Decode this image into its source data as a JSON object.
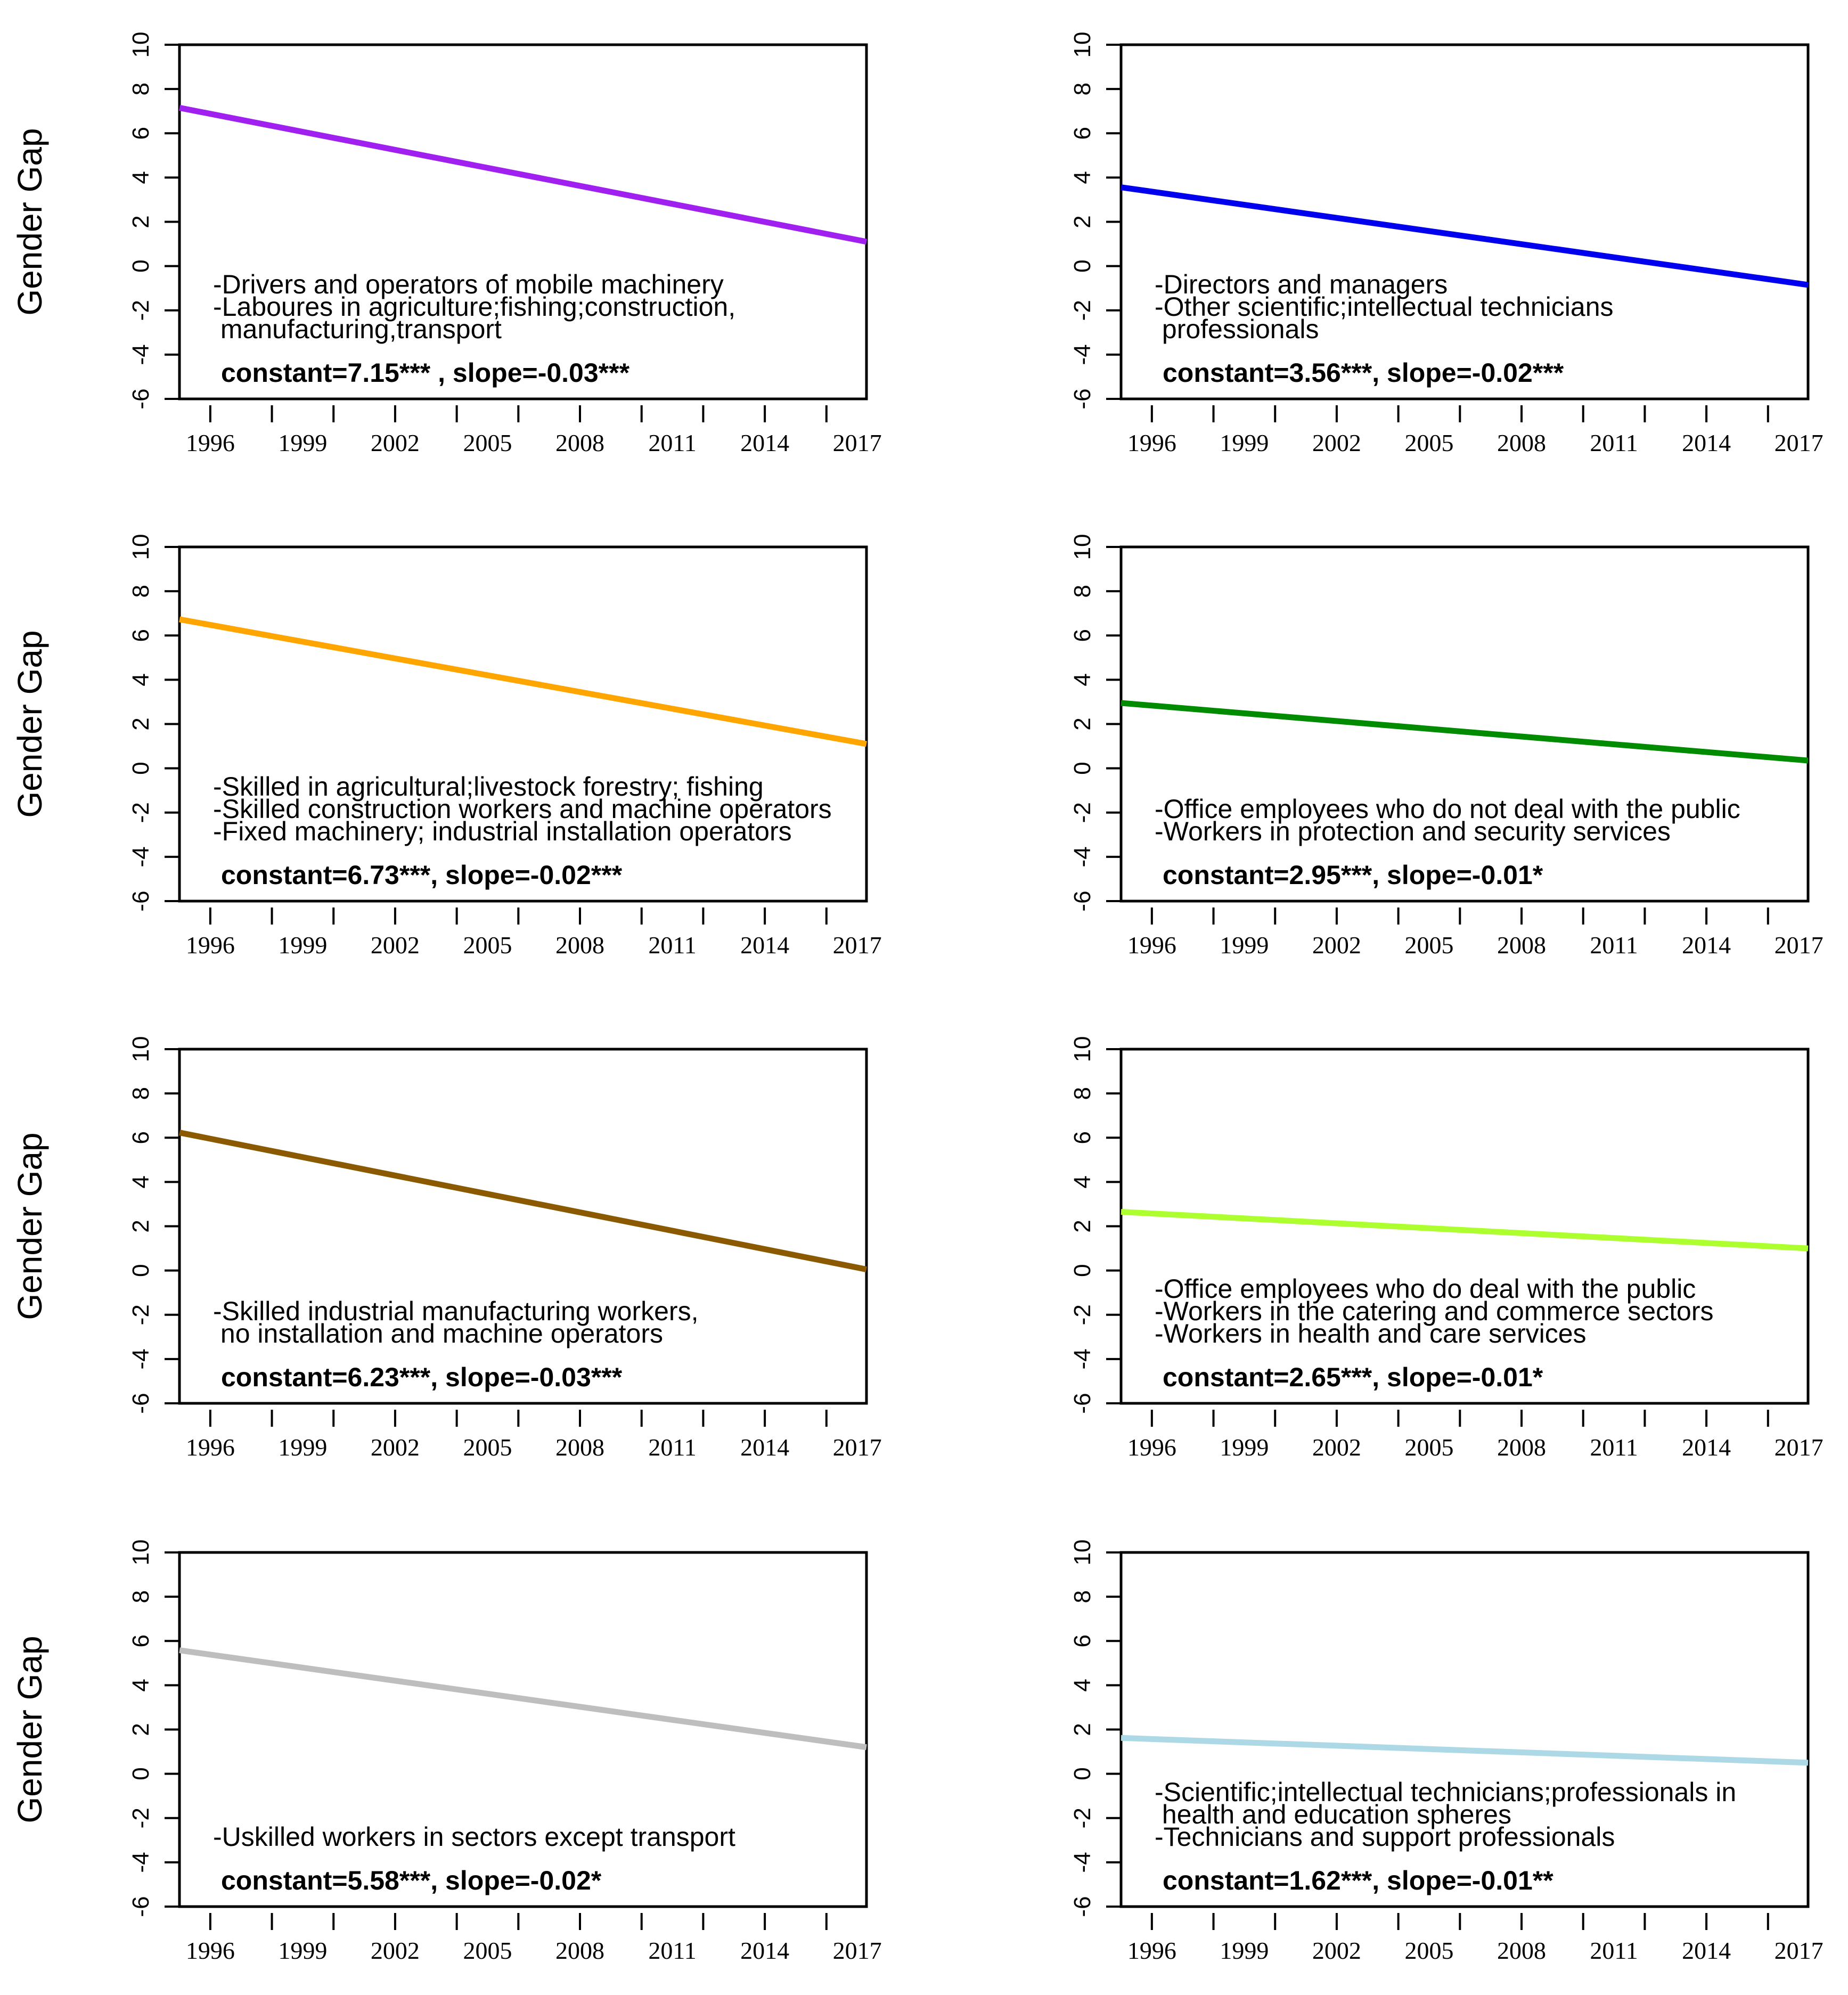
{
  "chart_data": [
    {
      "type": "line",
      "ylabel": "Gender Gap",
      "ylim": [
        -6,
        10
      ],
      "yticks": [
        "10",
        "8",
        "6",
        "4",
        "2",
        "0",
        "-2",
        "-4",
        "-6"
      ],
      "xticks": [
        "1996",
        "1999",
        "2002",
        "2005",
        "2008",
        "2011",
        "2014",
        "2017"
      ],
      "xlim": [
        1995,
        2017.3
      ],
      "color": "#a020f0",
      "series": [
        {
          "name": "fit",
          "x": [
            1995,
            2017.3
          ],
          "y": [
            7.15,
            1.1
          ]
        }
      ],
      "annotations": [
        "-Drivers and operators of mobile machinery",
        "-Laboures in agriculture;fishing;construction,",
        " manufacturing,transport"
      ],
      "stats": "constant=7.15*** , slope=-0.03***"
    },
    {
      "type": "line",
      "ylabel": "",
      "ylim": [
        -6,
        10
      ],
      "yticks": [
        "10",
        "8",
        "6",
        "4",
        "2",
        "0",
        "-2",
        "-4",
        "-6"
      ],
      "xticks": [
        "1996",
        "1999",
        "2002",
        "2005",
        "2008",
        "2011",
        "2014",
        "2017"
      ],
      "xlim": [
        1995,
        2017.3
      ],
      "color": "#0000ee",
      "series": [
        {
          "name": "fit",
          "x": [
            1995,
            2017.3
          ],
          "y": [
            3.56,
            -0.85
          ]
        }
      ],
      "annotations": [
        "-Directors and managers",
        "-Other scientific;intellectual technicians",
        " professionals"
      ],
      "stats": "constant=3.56***, slope=-0.02***"
    },
    {
      "type": "line",
      "ylabel": "Gender Gap",
      "ylim": [
        -6,
        10
      ],
      "yticks": [
        "10",
        "8",
        "6",
        "4",
        "2",
        "0",
        "-2",
        "-4",
        "-6"
      ],
      "xticks": [
        "1996",
        "1999",
        "2002",
        "2005",
        "2008",
        "2011",
        "2014",
        "2017"
      ],
      "xlim": [
        1995,
        2017.3
      ],
      "color": "#ffa500",
      "series": [
        {
          "name": "fit",
          "x": [
            1995,
            2017.3
          ],
          "y": [
            6.73,
            1.1
          ]
        }
      ],
      "annotations": [
        "-Skilled in agricultural;livestock forestry; fishing",
        "-Skilled construction workers and machine operators",
        "-Fixed machinery; industrial installation operators"
      ],
      "stats": "constant=6.73***, slope=-0.02***"
    },
    {
      "type": "line",
      "ylabel": "",
      "ylim": [
        -6,
        10
      ],
      "yticks": [
        "10",
        "8",
        "6",
        "4",
        "2",
        "0",
        "-2",
        "-4",
        "-6"
      ],
      "xticks": [
        "1996",
        "1999",
        "2002",
        "2005",
        "2008",
        "2011",
        "2014",
        "2017"
      ],
      "xlim": [
        1995,
        2017.3
      ],
      "color": "#008b00",
      "series": [
        {
          "name": "fit",
          "x": [
            1995,
            2017.3
          ],
          "y": [
            2.95,
            0.35
          ]
        }
      ],
      "annotations": [
        "-Office employees who do not deal with the public",
        "-Workers in protection and security services"
      ],
      "stats": "constant=2.95***, slope=-0.01*"
    },
    {
      "type": "line",
      "ylabel": "Gender Gap",
      "ylim": [
        -6,
        10
      ],
      "yticks": [
        "10",
        "8",
        "6",
        "4",
        "2",
        "0",
        "-2",
        "-4",
        "-6"
      ],
      "xticks": [
        "1996",
        "1999",
        "2002",
        "2005",
        "2008",
        "2011",
        "2014",
        "2017"
      ],
      "xlim": [
        1995,
        2017.3
      ],
      "color": "#8b5a00",
      "series": [
        {
          "name": "fit",
          "x": [
            1995,
            2017.3
          ],
          "y": [
            6.23,
            0.05
          ]
        }
      ],
      "annotations": [
        "-Skilled industrial manufacturing workers,",
        " no installation and machine operators"
      ],
      "stats": "constant=6.23***, slope=-0.03***"
    },
    {
      "type": "line",
      "ylabel": "",
      "ylim": [
        -6,
        10
      ],
      "yticks": [
        "10",
        "8",
        "6",
        "4",
        "2",
        "0",
        "-2",
        "-4",
        "-6"
      ],
      "xticks": [
        "1996",
        "1999",
        "2002",
        "2005",
        "2008",
        "2011",
        "2014",
        "2017"
      ],
      "xlim": [
        1995,
        2017.3
      ],
      "color": "#adff2f",
      "series": [
        {
          "name": "fit",
          "x": [
            1995,
            2017.3
          ],
          "y": [
            2.65,
            1.0
          ]
        }
      ],
      "annotations": [
        "-Office employees who do deal with the public",
        "-Workers in the catering and commerce sectors",
        "-Workers in health and care services"
      ],
      "stats": "constant=2.65***, slope=-0.01*"
    },
    {
      "type": "line",
      "ylabel": "Gender Gap",
      "ylim": [
        -6,
        10
      ],
      "yticks": [
        "10",
        "8",
        "6",
        "4",
        "2",
        "0",
        "-2",
        "-4",
        "-6"
      ],
      "xticks": [
        "1996",
        "1999",
        "2002",
        "2005",
        "2008",
        "2011",
        "2014",
        "2017"
      ],
      "xlim": [
        1995,
        2017.3
      ],
      "color": "#bebebe",
      "series": [
        {
          "name": "fit",
          "x": [
            1995,
            2017.3
          ],
          "y": [
            5.58,
            1.2
          ]
        }
      ],
      "annotations": [
        "-Uskilled workers in sectors except transport"
      ],
      "stats": "constant=5.58***, slope=-0.02*"
    },
    {
      "type": "line",
      "ylabel": "",
      "ylim": [
        -6,
        10
      ],
      "yticks": [
        "10",
        "8",
        "6",
        "4",
        "2",
        "0",
        "-2",
        "-4",
        "-6"
      ],
      "xticks": [
        "1996",
        "1999",
        "2002",
        "2005",
        "2008",
        "2011",
        "2014",
        "2017"
      ],
      "xlim": [
        1995,
        2017.3
      ],
      "color": "#add8e6",
      "series": [
        {
          "name": "fit",
          "x": [
            1995,
            2017.3
          ],
          "y": [
            1.62,
            0.5
          ]
        }
      ],
      "annotations": [
        "-Scientific;intellectual technicians;professionals in",
        " health and education spheres",
        "-Technicians and support professionals"
      ],
      "stats": "constant=1.62***, slope=-0.01**"
    }
  ]
}
